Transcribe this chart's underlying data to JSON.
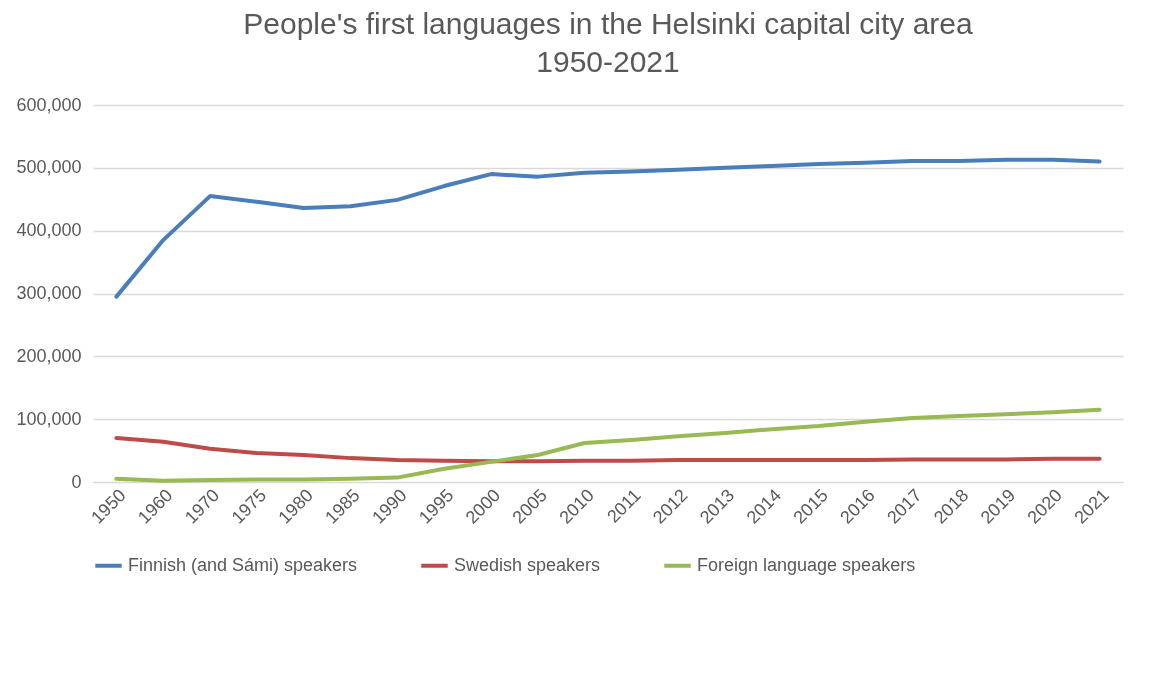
{
  "chart_data": {
    "type": "line",
    "title": "People's first languages in the Helsinki capital city area",
    "subtitle": "1950-2021",
    "categories": [
      "1950",
      "1960",
      "1970",
      "1975",
      "1980",
      "1985",
      "1990",
      "1995",
      "2000",
      "2005",
      "2010",
      "2011",
      "2012",
      "2013",
      "2014",
      "2015",
      "2016",
      "2017",
      "2018",
      "2019",
      "2020",
      "2021"
    ],
    "series": [
      {
        "name": "Finnish (and Sámi) speakers",
        "color": "#4a7ebb",
        "values": [
          295000,
          385000,
          455000,
          446000,
          436000,
          439000,
          449000,
          471000,
          490000,
          486000,
          492000,
          494000,
          497000,
          500000,
          503000,
          506000,
          508000,
          511000,
          511000,
          513000,
          513000,
          510000
        ]
      },
      {
        "name": "Swedish speakers",
        "color": "#be4b48",
        "values": [
          70000,
          64000,
          53000,
          46000,
          43000,
          38000,
          35000,
          34000,
          33000,
          33000,
          34000,
          34000,
          35000,
          35000,
          35000,
          35000,
          35000,
          36000,
          36000,
          36000,
          37000,
          37000
        ]
      },
      {
        "name": "Foreign language speakers",
        "color": "#98b954",
        "values": [
          5000,
          2000,
          3000,
          4000,
          4000,
          5000,
          7000,
          21000,
          32000,
          43000,
          62000,
          67000,
          73000,
          78000,
          84000,
          89000,
          96000,
          102000,
          105000,
          108000,
          111000,
          115000
        ]
      }
    ],
    "ylim": [
      0,
      600000
    ],
    "yticks": [
      {
        "value": 0,
        "label": "0"
      },
      {
        "value": 100000,
        "label": "100,000"
      },
      {
        "value": 200000,
        "label": "200,000"
      },
      {
        "value": 300000,
        "label": "300,000"
      },
      {
        "value": 400000,
        "label": "400,000"
      },
      {
        "value": 500000,
        "label": "500,000"
      },
      {
        "value": 600000,
        "label": "600,000"
      }
    ],
    "grid": "y",
    "legend": "bottom",
    "marker": "none",
    "line_style": "solid"
  }
}
